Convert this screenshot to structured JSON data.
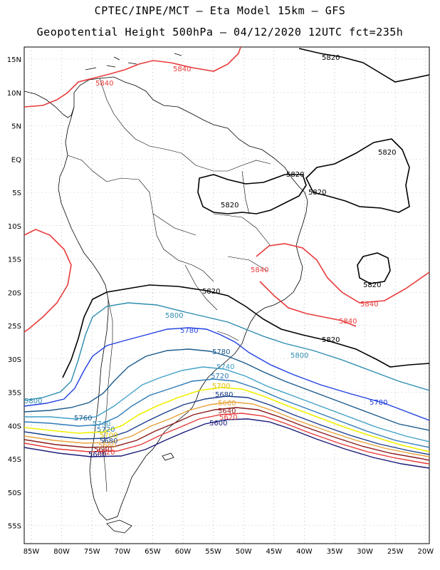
{
  "title_line1": "CPTEC/INPE/MCT –  Eta Model 15km – GFS",
  "title_line2": "Geopotential Height 500hPa – 04/12/2020 12UTC fct=235h",
  "lat_labels": [
    "15N",
    "10N",
    "5N",
    "EQ",
    "5S",
    "10S",
    "15S",
    "20S",
    "25S",
    "30S",
    "35S",
    "40S",
    "45S",
    "50S",
    "55S"
  ],
  "lon_labels": [
    "85W",
    "80W",
    "75W",
    "70W",
    "65W",
    "60W",
    "55W",
    "50W",
    "45W",
    "40W",
    "35W",
    "30W",
    "25W",
    "20W"
  ],
  "contour_colors": {
    "5600": "#1a1a78",
    "5620": "#e83b3b",
    "5640": "#8b1a1a",
    "5660": "#e8a33b",
    "5680": "#1a3e8c",
    "5700": "#f0f000",
    "5720": "#2d7ab8",
    "5740": "#3fa0c8",
    "5760": "#1a5a8c",
    "5780": "#1f3fe0",
    "5800": "#2c8cb0",
    "5820": "#000000",
    "5840": "#e83b3b"
  },
  "contour_labels": {
    "l5840a": "5840",
    "l5840b": "5840",
    "l5840c": "5840",
    "l5840d": "5840",
    "l5840e": "5840",
    "l5820a": "5820",
    "l5820b": "5820",
    "l5820c": "5820",
    "l5820d": "5820",
    "l5820e": "5820",
    "l5820f": "5820",
    "l5820g": "5820",
    "l5800a": "5800",
    "l5800b": "5800",
    "l5800c": "5800",
    "l5780a": "5780",
    "l5780b": "5780",
    "l5780c": "5780",
    "l5760a": "5760",
    "l5760b": "5760",
    "l5740a": "5740",
    "l5740b": "5740",
    "l5720a": "5720",
    "l5720b": "5720",
    "l5700a": "5700",
    "l5700b": "5700",
    "l5680a": "5680",
    "l5680b": "5680",
    "l5660a": "5660",
    "l5660b": "5660",
    "l5640a": "5640",
    "l5640b": "5640",
    "l5620a": "5620",
    "l5620b": "5620",
    "l5600a": "5600",
    "l5600b": "5600"
  }
}
